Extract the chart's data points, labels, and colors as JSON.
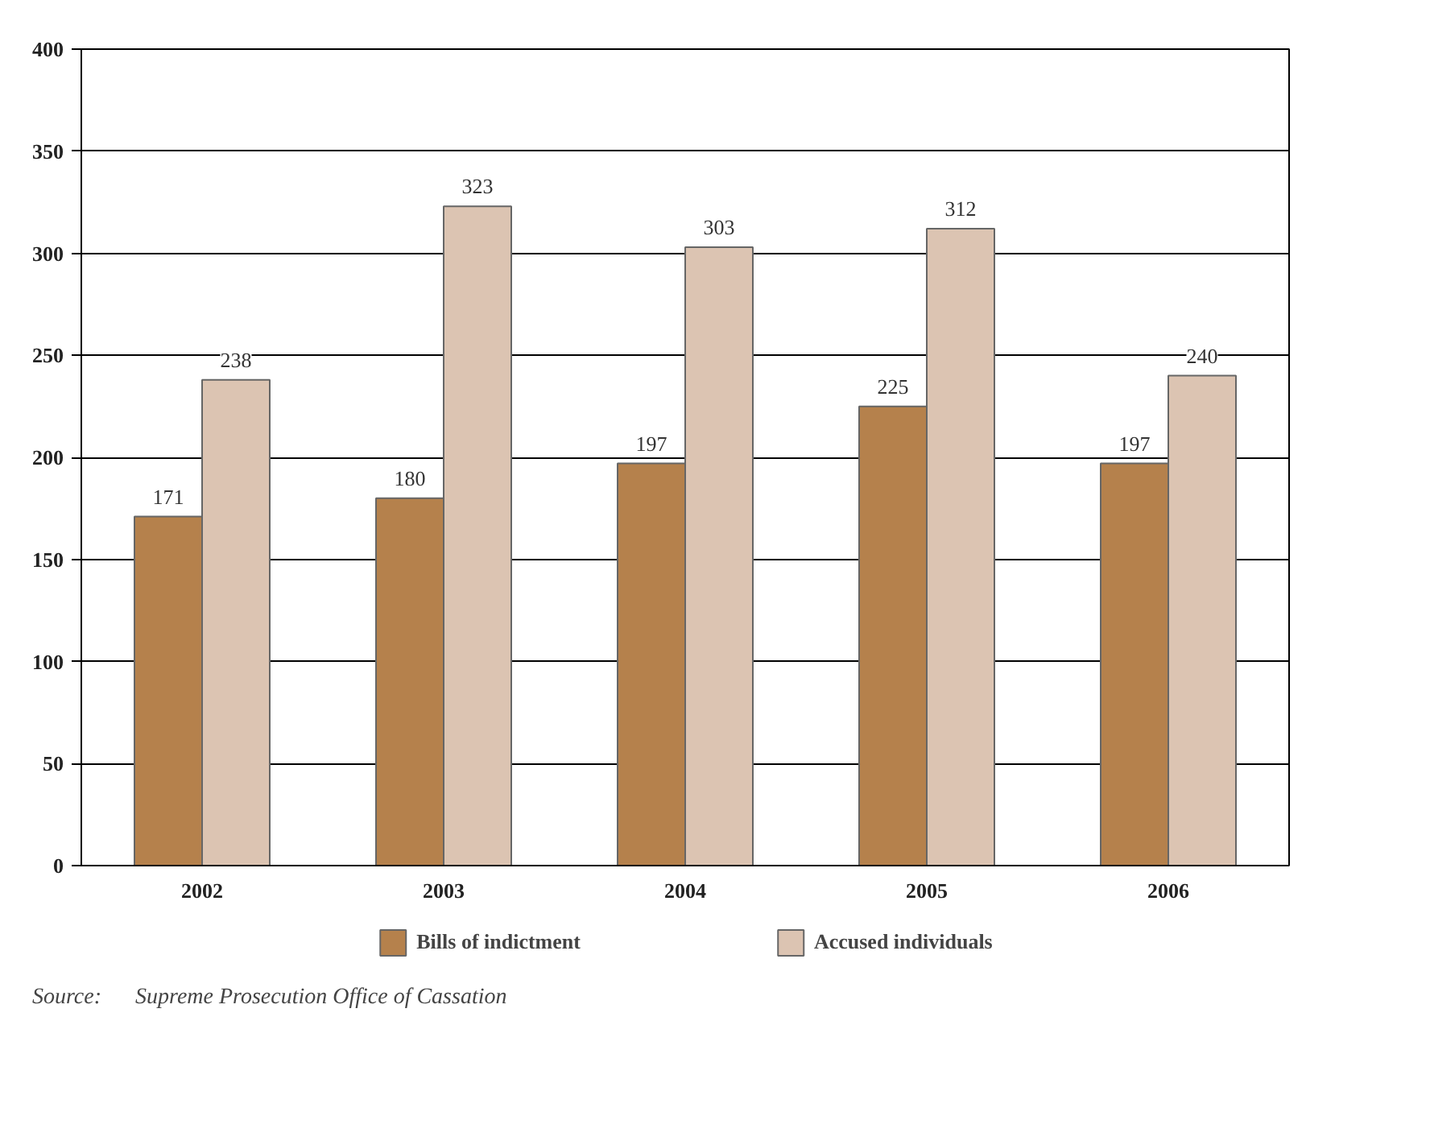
{
  "chart_data": {
    "type": "bar",
    "categories": [
      "2002",
      "2003",
      "2004",
      "2005",
      "2006"
    ],
    "series": [
      {
        "name": "Bills of indictment",
        "color": "#b5814c",
        "values": [
          171,
          180,
          197,
          225,
          197
        ]
      },
      {
        "name": "Accused individuals",
        "color": "#dcc4b2",
        "values": [
          238,
          323,
          303,
          312,
          240
        ]
      }
    ],
    "ylim": [
      0,
      400
    ],
    "yticks": [
      0,
      50,
      100,
      150,
      200,
      250,
      300,
      350,
      400
    ],
    "grid": "y",
    "legend": "bottom",
    "data_labels": true,
    "annotations": [
      "Source:      Supreme Prosecution Office of Cassation"
    ]
  }
}
